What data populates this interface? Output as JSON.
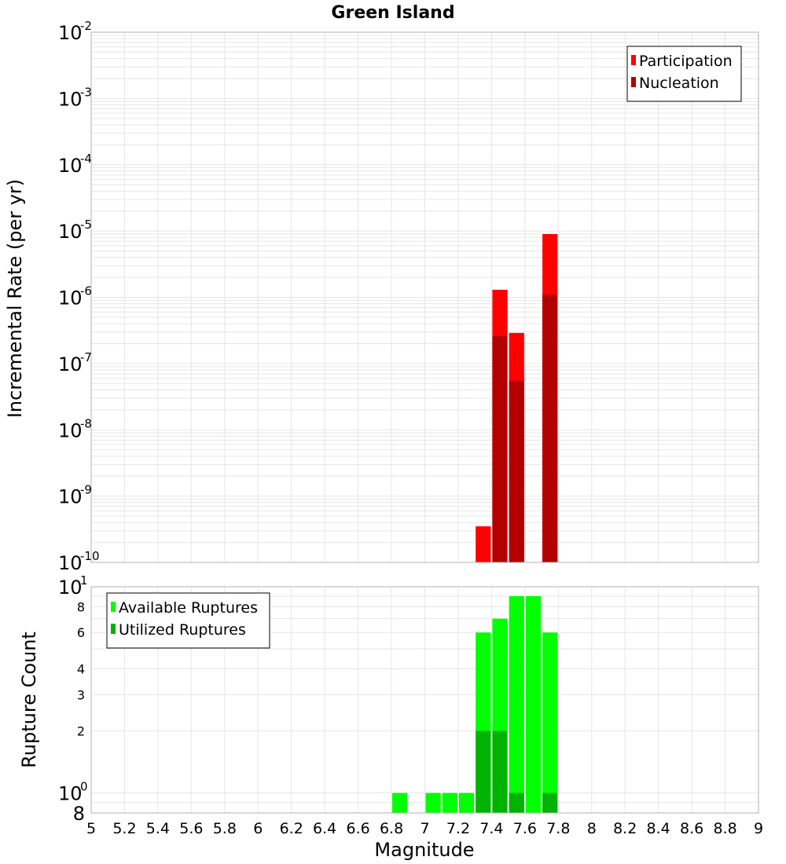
{
  "chart_data": [
    {
      "type": "bar",
      "title": "Green Island",
      "ylabel": "Incremental Rate (per yr)",
      "xlim": [
        5,
        9
      ],
      "yscale": "log",
      "ylim": [
        1e-10,
        0.01
      ],
      "grid": true,
      "legend_position": "top-right",
      "series": [
        {
          "name": "Participation",
          "color": "#ff0000",
          "x": [
            7.35,
            7.45,
            7.55,
            7.75
          ],
          "values": [
            3.5e-10,
            1.3e-06,
            2.9e-07,
            9e-06
          ]
        },
        {
          "name": "Nucleation",
          "color": "#b30000",
          "x": [
            7.45,
            7.55,
            7.75
          ],
          "values": [
            2.6e-07,
            5.5e-08,
            1.1e-06
          ]
        }
      ]
    },
    {
      "type": "bar",
      "xlabel": "Magnitude",
      "ylabel": "Rupture Count",
      "xlim": [
        5,
        9
      ],
      "yscale": "log",
      "ylim": [
        0.8,
        10
      ],
      "grid": true,
      "legend_position": "top-left",
      "series": [
        {
          "name": "Available Ruptures",
          "color": "#00ff00",
          "x": [
            6.85,
            7.05,
            7.15,
            7.25,
            7.35,
            7.45,
            7.55,
            7.65,
            7.75
          ],
          "values": [
            1,
            1,
            1,
            1,
            6,
            7,
            9,
            9,
            6
          ]
        },
        {
          "name": "Utilized Ruptures",
          "color": "#00b300",
          "x": [
            7.35,
            7.45,
            7.55,
            7.75
          ],
          "values": [
            2,
            2,
            1,
            1
          ]
        }
      ]
    }
  ],
  "x_ticks": [
    "5",
    "5.2",
    "5.4",
    "5.6",
    "5.8",
    "6",
    "6.2",
    "6.4",
    "6.6",
    "6.8",
    "7",
    "7.2",
    "7.4",
    "7.6",
    "7.8",
    "8",
    "8.2",
    "8.4",
    "8.6",
    "8.8",
    "9"
  ],
  "top_y_ticks": [
    {
      "base": "10",
      "exp": "-2"
    },
    {
      "base": "10",
      "exp": "-3"
    },
    {
      "base": "10",
      "exp": "-4"
    },
    {
      "base": "10",
      "exp": "-5"
    },
    {
      "base": "10",
      "exp": "-6"
    },
    {
      "base": "10",
      "exp": "-7"
    },
    {
      "base": "10",
      "exp": "-8"
    },
    {
      "base": "10",
      "exp": "-9"
    },
    {
      "base": "10",
      "exp": "-10"
    }
  ],
  "bottom_y_ticks": [
    {
      "base": "10",
      "exp": "1",
      "value": 10
    },
    {
      "label": "8",
      "value": 8
    },
    {
      "label": "6",
      "value": 6
    },
    {
      "label": "4",
      "value": 4
    },
    {
      "label": "3",
      "value": 3
    },
    {
      "label": "2",
      "value": 2
    },
    {
      "base": "10",
      "exp": "0",
      "value": 1
    },
    {
      "label": "8",
      "value": 0.8,
      "large": true
    }
  ]
}
